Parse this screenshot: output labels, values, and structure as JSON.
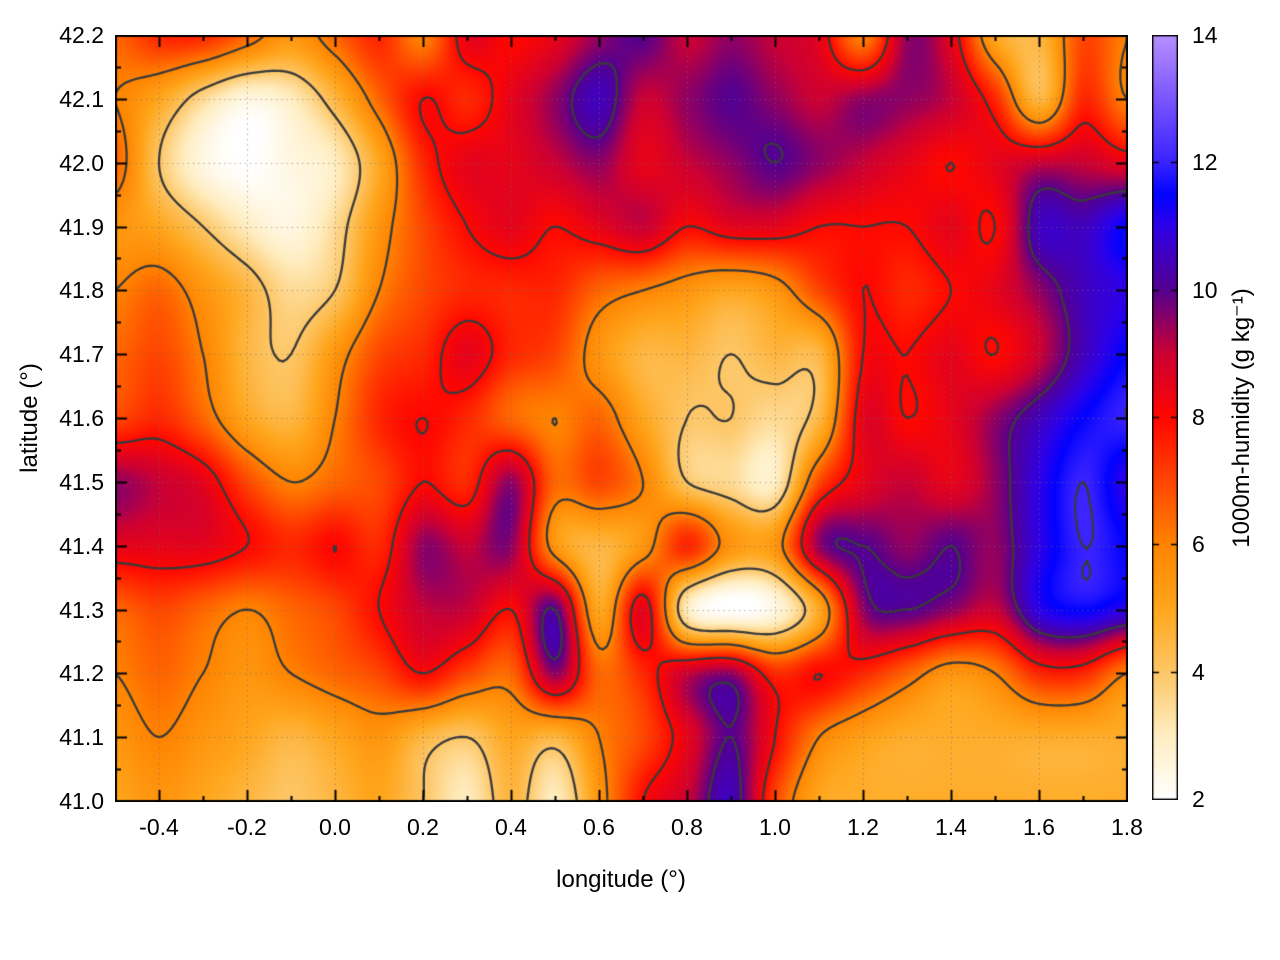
{
  "chart_data": {
    "type": "heatmap",
    "title": "",
    "xlabel": "longitude (°)",
    "ylabel": "latitude (°)",
    "colorbar_label": "1000m-humidity (g kg⁻¹)",
    "x_range": [
      -0.5,
      1.8
    ],
    "y_range": [
      41.0,
      42.2
    ],
    "grid_on": true,
    "legend_position": "right-colorbar",
    "x_axis": {
      "major_ticks": [
        {
          "value": -0.4,
          "label": "-0.4"
        },
        {
          "value": -0.2,
          "label": "-0.2"
        },
        {
          "value": 0.0,
          "label": "0.0"
        },
        {
          "value": 0.2,
          "label": "0.2"
        },
        {
          "value": 0.4,
          "label": "0.4"
        },
        {
          "value": 0.6,
          "label": "0.6"
        },
        {
          "value": 0.8,
          "label": "0.8"
        },
        {
          "value": 1.0,
          "label": "1.0"
        },
        {
          "value": 1.2,
          "label": "1.2"
        },
        {
          "value": 1.4,
          "label": "1.4"
        },
        {
          "value": 1.6,
          "label": "1.6"
        },
        {
          "value": 1.8,
          "label": "1.8"
        }
      ],
      "minor_ticks": [
        -0.3,
        -0.1,
        0.1,
        0.3,
        0.5,
        0.7,
        0.9,
        1.1,
        1.3,
        1.5,
        1.7
      ]
    },
    "y_axis": {
      "major_ticks": [
        {
          "value": 41.0,
          "label": "41.0"
        },
        {
          "value": 41.1,
          "label": "41.1"
        },
        {
          "value": 41.2,
          "label": "41.2"
        },
        {
          "value": 41.3,
          "label": "41.3"
        },
        {
          "value": 41.4,
          "label": "41.4"
        },
        {
          "value": 41.5,
          "label": "41.5"
        },
        {
          "value": 41.6,
          "label": "41.6"
        },
        {
          "value": 41.7,
          "label": "41.7"
        },
        {
          "value": 41.8,
          "label": "41.8"
        },
        {
          "value": 41.9,
          "label": "41.9"
        },
        {
          "value": 42.0,
          "label": "42.0"
        },
        {
          "value": 42.1,
          "label": "42.1"
        },
        {
          "value": 42.2,
          "label": "42.2"
        }
      ],
      "minor_ticks": [
        41.05,
        41.15,
        41.25,
        41.35,
        41.45,
        41.55,
        41.65,
        41.75,
        41.85,
        41.95,
        42.05,
        42.15
      ]
    },
    "colorbar": {
      "range": [
        2,
        14
      ],
      "ticks": [
        {
          "value": 2,
          "label": "2"
        },
        {
          "value": 4,
          "label": "4"
        },
        {
          "value": 6,
          "label": "6"
        },
        {
          "value": 8,
          "label": "8"
        },
        {
          "value": 10,
          "label": "10"
        },
        {
          "value": 12,
          "label": "12"
        },
        {
          "value": 14,
          "label": "14"
        }
      ],
      "palette": [
        [
          2,
          "#ffffff"
        ],
        [
          3,
          "#ffeec2"
        ],
        [
          4,
          "#fdc666"
        ],
        [
          5,
          "#ffa61c"
        ],
        [
          6,
          "#ff8400"
        ],
        [
          7,
          "#ff4600"
        ],
        [
          8,
          "#ff0600"
        ],
        [
          9,
          "#cc0033"
        ],
        [
          10,
          "#55008f"
        ],
        [
          11,
          "#2e00e8"
        ],
        [
          11.5,
          "#0202ff"
        ],
        [
          12,
          "#3922ff"
        ],
        [
          13,
          "#7a55ff"
        ],
        [
          14,
          "#b68fff"
        ]
      ]
    },
    "contours": {
      "levels": [
        4,
        6,
        8,
        10,
        12
      ],
      "color": "#3a3a3a"
    },
    "grid_color_hint": "#8a8a8a",
    "field": {
      "units": "g kg-1",
      "lon": [
        -0.5,
        -0.4,
        -0.3,
        -0.2,
        -0.1,
        0.0,
        0.1,
        0.2,
        0.3,
        0.4,
        0.5,
        0.6,
        0.7,
        0.8,
        0.9,
        1.0,
        1.1,
        1.2,
        1.3,
        1.4,
        1.5,
        1.6,
        1.7,
        1.8
      ],
      "lat": [
        42.2,
        42.1,
        42.0,
        41.9,
        41.8,
        41.7,
        41.6,
        41.5,
        41.4,
        41.3,
        41.2,
        41.1,
        41.0
      ],
      "values": [
        [
          6.5,
          7.5,
          7.5,
          6.5,
          5.5,
          6.5,
          7.5,
          6.0,
          8.5,
          8.0,
          8.5,
          9.5,
          10.0,
          9.0,
          9.5,
          9.0,
          8.5,
          6.0,
          9.5,
          8.5,
          5.0,
          4.5,
          7.0,
          6.0
        ],
        [
          6.0,
          5.0,
          3.5,
          2.5,
          3.0,
          4.5,
          6.5,
          8.0,
          7.5,
          8.5,
          9.5,
          10.5,
          9.0,
          9.5,
          10.0,
          9.5,
          9.0,
          9.5,
          9.5,
          9.0,
          7.5,
          4.5,
          7.5,
          6.0
        ],
        [
          6.5,
          4.0,
          2.5,
          2.0,
          2.5,
          3.0,
          5.0,
          7.5,
          8.5,
          8.5,
          9.0,
          9.5,
          8.5,
          9.0,
          9.5,
          10.0,
          9.5,
          9.0,
          8.5,
          8.0,
          8.5,
          9.0,
          9.0,
          8.5
        ],
        [
          5.5,
          5.0,
          4.0,
          3.0,
          2.5,
          3.5,
          5.5,
          7.0,
          8.0,
          8.5,
          8.0,
          8.5,
          9.0,
          8.0,
          8.5,
          8.5,
          8.0,
          8.0,
          8.0,
          8.5,
          8.0,
          10.5,
          10.5,
          11.5
        ],
        [
          6.0,
          6.5,
          5.5,
          4.5,
          3.5,
          4.0,
          6.0,
          7.0,
          7.5,
          7.5,
          7.5,
          6.5,
          6.0,
          5.5,
          5.0,
          5.5,
          7.0,
          8.0,
          7.5,
          8.0,
          8.5,
          9.5,
          10.5,
          11.0
        ],
        [
          6.5,
          7.0,
          6.0,
          4.5,
          4.0,
          5.5,
          7.0,
          7.5,
          8.5,
          7.5,
          7.0,
          5.5,
          4.5,
          4.5,
          4.0,
          4.5,
          4.5,
          8.0,
          8.0,
          8.5,
          8.0,
          9.0,
          10.5,
          11.5
        ],
        [
          7.0,
          7.5,
          6.5,
          5.0,
          4.5,
          6.0,
          7.5,
          8.0,
          7.5,
          6.5,
          6.0,
          6.5,
          5.0,
          4.0,
          4.0,
          3.5,
          4.5,
          8.5,
          8.0,
          8.5,
          9.5,
          10.5,
          11.5,
          12.0
        ],
        [
          9.5,
          9.0,
          8.5,
          7.0,
          6.0,
          6.5,
          7.0,
          8.0,
          7.5,
          9.5,
          6.5,
          7.0,
          6.0,
          4.0,
          3.5,
          3.0,
          7.0,
          8.5,
          9.0,
          8.5,
          9.5,
          11.0,
          12.0,
          11.0
        ],
        [
          8.5,
          8.5,
          8.5,
          8.0,
          7.5,
          8.0,
          7.5,
          9.5,
          9.0,
          9.5,
          5.5,
          4.5,
          5.5,
          7.5,
          5.5,
          5.5,
          9.5,
          10.0,
          9.5,
          10.0,
          9.5,
          11.0,
          12.0,
          11.5
        ],
        [
          6.5,
          7.0,
          6.5,
          6.0,
          6.5,
          7.0,
          8.0,
          9.0,
          9.0,
          8.0,
          10.0,
          5.0,
          8.5,
          3.0,
          2.0,
          2.5,
          5.0,
          9.5,
          10.0,
          9.5,
          9.0,
          11.0,
          11.5,
          11.0
        ],
        [
          6.0,
          6.5,
          6.0,
          5.5,
          6.0,
          6.5,
          7.0,
          8.0,
          7.0,
          6.5,
          9.5,
          6.5,
          7.5,
          9.0,
          9.5,
          7.5,
          8.0,
          7.5,
          6.5,
          5.5,
          6.0,
          7.5,
          7.5,
          6.0
        ],
        [
          5.5,
          6.0,
          5.5,
          5.0,
          4.5,
          5.0,
          5.5,
          4.5,
          4.0,
          5.0,
          4.5,
          6.0,
          7.0,
          8.5,
          10.0,
          8.0,
          6.0,
          5.2,
          4.8,
          4.8,
          4.8,
          4.8,
          4.8,
          4.8
        ],
        [
          5.0,
          5.5,
          5.0,
          4.5,
          4.0,
          4.5,
          5.0,
          4.0,
          3.0,
          4.5,
          3.0,
          5.5,
          8.0,
          9.0,
          10.5,
          7.0,
          5.0,
          4.8,
          4.8,
          4.8,
          4.8,
          4.8,
          4.8,
          4.8
        ]
      ]
    }
  }
}
